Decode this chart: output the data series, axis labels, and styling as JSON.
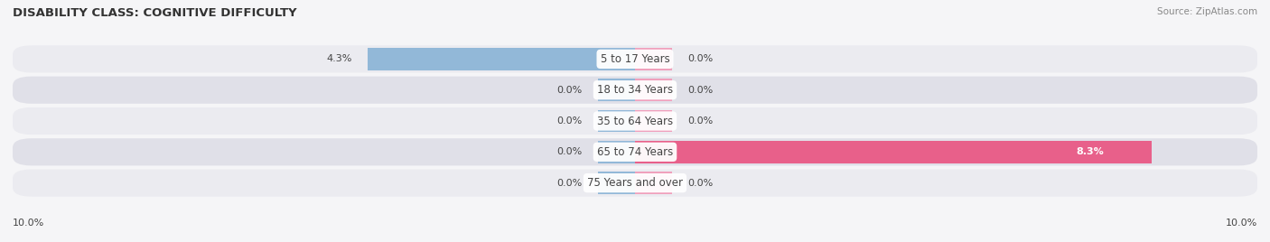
{
  "title": "DISABILITY CLASS: COGNITIVE DIFFICULTY",
  "source": "Source: ZipAtlas.com",
  "categories": [
    "5 to 17 Years",
    "18 to 34 Years",
    "35 to 64 Years",
    "65 to 74 Years",
    "75 Years and over"
  ],
  "male_values": [
    4.3,
    0.0,
    0.0,
    0.0,
    0.0
  ],
  "female_values": [
    0.0,
    0.0,
    0.0,
    8.3,
    0.0
  ],
  "max_val": 10.0,
  "stub_val": 0.6,
  "male_color": "#92b8d8",
  "female_color": "#f0a0bc",
  "female_hot_color": "#e8608a",
  "row_bg_even": "#ebebf0",
  "row_bg_odd": "#e0e0e8",
  "label_color": "#444444",
  "title_color": "#333333",
  "source_color": "#888888",
  "center_label_color": "#444444",
  "legend_male_color": "#7bafd4",
  "legend_female_color": "#f080a0",
  "bg_color": "#f5f5f7"
}
